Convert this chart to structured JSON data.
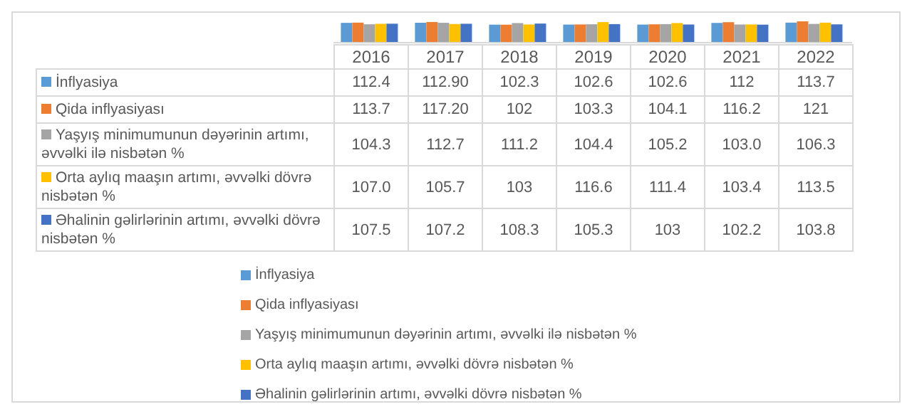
{
  "chart_data": {
    "type": "bar",
    "categories": [
      "2016",
      "2017",
      "2018",
      "2019",
      "2020",
      "2021",
      "2022"
    ],
    "series": [
      {
        "name": "İnflyasiya",
        "color": "#5b9bd5",
        "values": [
          112.4,
          112.9,
          102.3,
          102.6,
          102.6,
          112,
          113.7
        ],
        "value_labels": [
          "112.4",
          "112.90",
          "102.3",
          "102.6",
          "102.6",
          "112",
          "113.7"
        ]
      },
      {
        "name": "Qida inflyasiyası",
        "color": "#ed7d31",
        "values": [
          113.7,
          117.2,
          102,
          103.3,
          104.1,
          116.2,
          121
        ],
        "value_labels": [
          "113.7",
          "117.20",
          "102",
          "103.3",
          "104.1",
          "116.2",
          "121"
        ]
      },
      {
        "name": "Yaşyış minimumunun dəyərinin artımı, əvvəlki ilə nisbətən %",
        "color": "#a5a5a5",
        "values": [
          104.3,
          112.7,
          111.2,
          104.4,
          105.2,
          103.0,
          106.3
        ],
        "value_labels": [
          "104.3",
          "112.7",
          "111.2",
          "104.4",
          "105.2",
          "103.0",
          "106.3"
        ]
      },
      {
        "name": "Orta aylıq maaşın artımı, əvvəlki dövrə nisbətən %",
        "color": "#ffc000",
        "values": [
          107.0,
          105.7,
          103,
          116.6,
          111.4,
          103.4,
          113.5
        ],
        "value_labels": [
          "107.0",
          "105.7",
          "103",
          "116.6",
          "111.4",
          "103.4",
          "113.5"
        ]
      },
      {
        "name": "Əhalinin gəlirlərinin artımı, əvvəlki dövrə nisbətən %",
        "color": "#4472c4",
        "values": [
          107.5,
          107.2,
          108.3,
          105.3,
          103,
          102.2,
          103.8
        ],
        "value_labels": [
          "107.5",
          "107.2",
          "108.3",
          "105.3",
          "103",
          "102.2",
          "103.8"
        ]
      }
    ],
    "legend": "bottom",
    "grid": false
  }
}
